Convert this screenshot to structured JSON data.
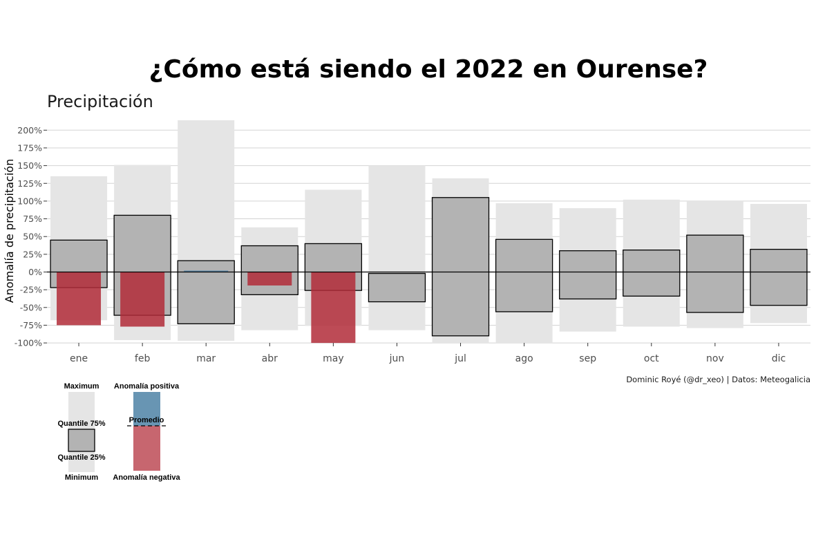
{
  "chart_data": {
    "type": "bar",
    "title": "¿Cómo está siendo el 2022 en Ourense?",
    "subtitle": "Precipitación",
    "ylabel": "Anomalía de precipitación",
    "xlabel": "",
    "caption": "Dominic Royé (@dr_xeo) | Datos: Meteogalicia",
    "ylim": [
      -100,
      215
    ],
    "yticks": [
      -100,
      -75,
      -50,
      -25,
      0,
      25,
      50,
      75,
      100,
      125,
      150,
      175,
      200
    ],
    "ytick_labels": [
      "-100%",
      "-75%",
      "-50%",
      "-25%",
      "0%",
      "25%",
      "50%",
      "75%",
      "100%",
      "125%",
      "150%",
      "175%",
      "200%"
    ],
    "categories": [
      "ene",
      "feb",
      "mar",
      "abr",
      "may",
      "jun",
      "jul",
      "ago",
      "sep",
      "oct",
      "nov",
      "dic"
    ],
    "grid": true,
    "series": [
      {
        "name": "Minimum",
        "values": [
          -68,
          -96,
          -97,
          -82,
          -76,
          -82,
          -100,
          -100,
          -84,
          -77,
          -79,
          -72
        ]
      },
      {
        "name": "Maximum",
        "values": [
          135,
          151,
          214,
          63,
          116,
          150,
          132,
          97,
          90,
          102,
          100,
          96
        ]
      },
      {
        "name": "Quantile 25%",
        "values": [
          -22,
          -61,
          -73,
          -32,
          -26,
          -42,
          -90,
          -56,
          -38,
          -34,
          -57,
          -47
        ]
      },
      {
        "name": "Quantile 75%",
        "values": [
          45,
          80,
          16,
          37,
          40,
          -2,
          105,
          46,
          30,
          31,
          52,
          32
        ]
      },
      {
        "name": "Anomalía",
        "values": [
          -75,
          -77,
          2,
          -19,
          -100,
          null,
          null,
          null,
          null,
          null,
          null,
          null
        ]
      }
    ],
    "legend": {
      "position": "bottom-left",
      "box_labels": {
        "max": "Maximum",
        "q75": "Quantile 75%",
        "q25": "Quantile 25%",
        "min": "Minimum"
      },
      "anomaly_labels": {
        "pos": "Anomalía positiva",
        "mean": "Promedio",
        "neg": "Anomalía negativa"
      }
    },
    "colors": {
      "range": "#e5e5e5",
      "iqr": "#b3b3b3",
      "positive": "#4d82a6",
      "negative": "#b22b38",
      "grid": "#d3d3d3"
    }
  }
}
